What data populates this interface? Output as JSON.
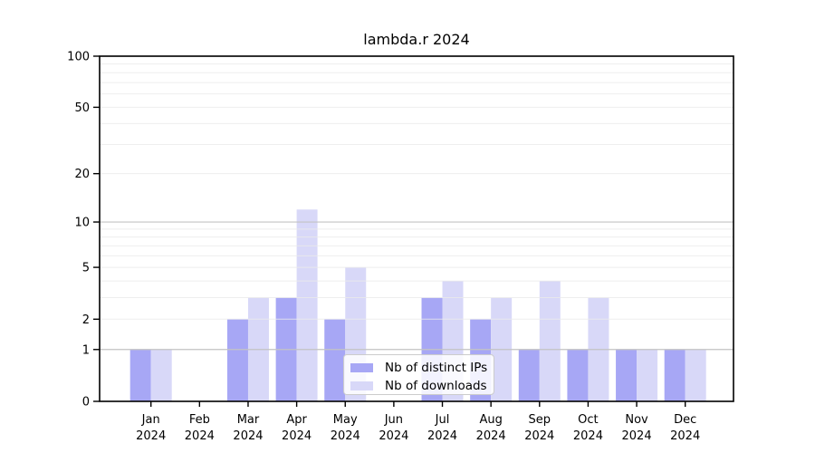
{
  "chart_data": {
    "type": "bar",
    "title": "lambda.r 2024",
    "categories": [
      "Jan",
      "Feb",
      "Mar",
      "Apr",
      "May",
      "Jun",
      "Jul",
      "Aug",
      "Sep",
      "Oct",
      "Nov",
      "Dec"
    ],
    "year_label": "2024",
    "series": [
      {
        "name": "Nb of distinct IPs",
        "color": "#a7a7f5",
        "values": [
          1,
          0,
          2,
          3,
          2,
          0,
          3,
          2,
          1,
          1,
          1,
          1
        ]
      },
      {
        "name": "Nb of downloads",
        "color": "#d8d8f8",
        "values": [
          1,
          0,
          3,
          12,
          5,
          0,
          4,
          3,
          4,
          3,
          1,
          1
        ]
      }
    ],
    "y_axis": {
      "scale": "log1p",
      "ticks": [
        0,
        1,
        2,
        5,
        10,
        20,
        50,
        100
      ],
      "min": 0,
      "max": 100
    },
    "x_axis": {
      "tick_label_line1": "month",
      "tick_label_line2": "year"
    },
    "grid": true,
    "legend_position": "inside-bottom-center",
    "grid_major_color": "#c3c3c3",
    "grid_minor_color": "#ebebeb",
    "axis_color": "#000000"
  }
}
